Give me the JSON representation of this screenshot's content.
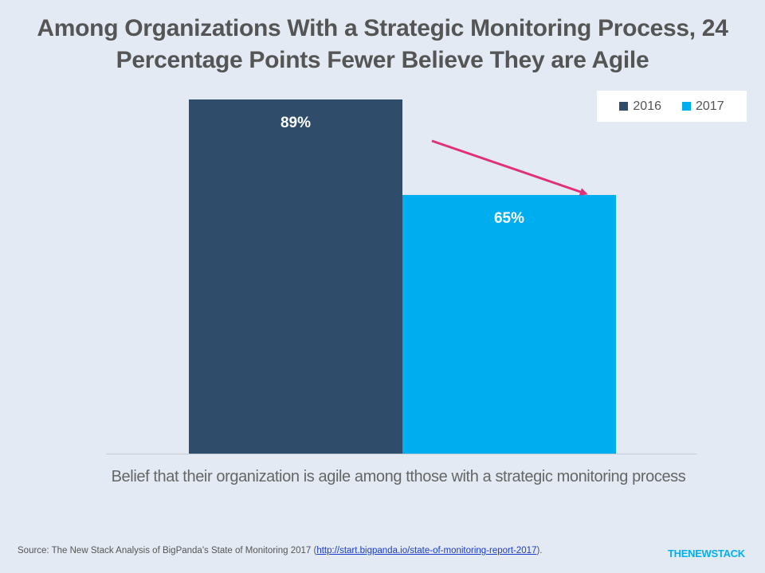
{
  "title_line1": "Among Organizations With a Strategic Monitoring Process, 24",
  "title_line2": "Percentage Points Fewer Believe They are Agile",
  "legend": [
    {
      "label": "2016",
      "color": "#2f4d6a"
    },
    {
      "label": "2017",
      "color": "#00aeef"
    }
  ],
  "arrow_color": "#e0307a",
  "chart_data": {
    "type": "bar",
    "categories": [
      "Belief that their organization is agile among tthose with a strategic monitoring process"
    ],
    "series": [
      {
        "name": "2016",
        "values": [
          89
        ],
        "color": "#2f4d6a",
        "data_label": "89%"
      },
      {
        "name": "2017",
        "values": [
          65
        ],
        "color": "#00aeef",
        "data_label": "65%"
      }
    ],
    "ylim": [
      0,
      100
    ],
    "grid": false,
    "legend_position": "top-right",
    "xlabel": "",
    "ylabel": ""
  },
  "category_label": "Belief that their organization is agile among tthose with a strategic monitoring process",
  "source_prefix": "Source: The New Stack Analysis of BigPanda's  State of Monitoring  2017 (",
  "source_link": "http://start.bigpanda.io/state-of-monitoring-report-2017",
  "source_suffix": ").",
  "brand": "THENEWSTACK"
}
